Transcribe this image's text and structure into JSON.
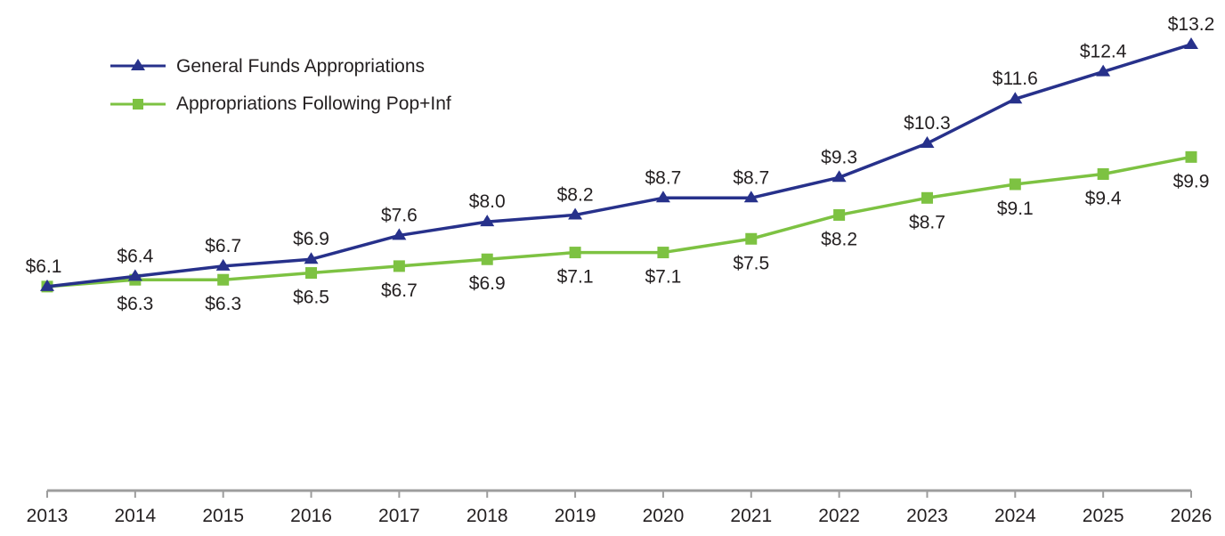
{
  "chart_data": {
    "type": "line",
    "title": "",
    "xlabel": "",
    "ylabel": "",
    "x": [
      "2013",
      "2014",
      "2015",
      "2016",
      "2017",
      "2018",
      "2019",
      "2020",
      "2021",
      "2022",
      "2023",
      "2024",
      "2025",
      "2026"
    ],
    "ylim": [
      0,
      14
    ],
    "grid": false,
    "legend_position": "top-left",
    "series": [
      {
        "name": "General Funds Appropriations",
        "color": "#27318b",
        "marker": "triangle",
        "label_position": "above",
        "values": [
          6.1,
          6.4,
          6.7,
          6.9,
          7.6,
          8.0,
          8.2,
          8.7,
          8.7,
          9.3,
          10.3,
          11.6,
          12.4,
          13.2
        ],
        "labels": [
          "$6.1",
          "$6.4",
          "$6.7",
          "$6.9",
          "$7.6",
          "$8.0",
          "$8.2",
          "$8.7",
          "$8.7",
          "$9.3",
          "$10.3",
          "$11.6",
          "$12.4",
          "$13.2"
        ]
      },
      {
        "name": "Appropriations Following Pop+Inf",
        "color": "#7dc242",
        "marker": "square",
        "label_position": "below",
        "values": [
          6.1,
          6.3,
          6.3,
          6.5,
          6.7,
          6.9,
          7.1,
          7.1,
          7.5,
          8.2,
          8.7,
          9.1,
          9.4,
          9.9
        ],
        "labels": [
          "",
          "$6.3",
          "$6.3",
          "$6.5",
          "$6.7",
          "$6.9",
          "$7.1",
          "$7.1",
          "$7.5",
          "$8.2",
          "$8.7",
          "$9.1",
          "$9.4",
          "$9.9"
        ]
      }
    ],
    "axis_color": "#9d9d9d"
  }
}
